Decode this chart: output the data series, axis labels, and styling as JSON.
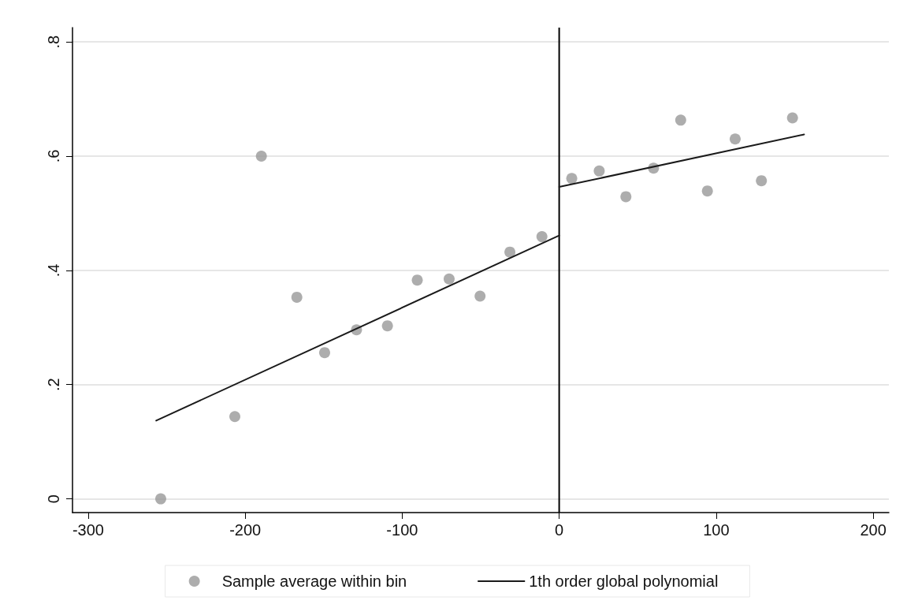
{
  "chart_data": {
    "type": "scatter",
    "series": [
      {
        "name": "Sample average within bin",
        "color": "#999999",
        "marker": "circle",
        "x": [
          -253.8,
          -206.6,
          -189.7,
          -167.1,
          -149.4,
          -129.1,
          -109.4,
          -90.4,
          -70.1,
          -50.4,
          -31.4,
          -11.0,
          8.0,
          25.5,
          42.5,
          60.1,
          77.4,
          94.4,
          112.1,
          128.8,
          148.6
        ],
        "values": [
          0.0,
          0.144,
          0.6,
          0.353,
          0.256,
          0.296,
          0.303,
          0.383,
          0.385,
          0.355,
          0.432,
          0.459,
          0.561,
          0.574,
          0.529,
          0.579,
          0.663,
          0.539,
          0.63,
          0.557,
          0.667
        ]
      },
      {
        "name": "1th order global polynomial",
        "type": "line",
        "color": "#1a1a1a",
        "marker": "none",
        "line_style": "solid",
        "x": [
          -256.7,
          0
        ],
        "values": [
          0.137,
          0.461
        ]
      },
      {
        "type": "line",
        "color": "#1a1a1a",
        "marker": "none",
        "line_style": "solid",
        "x": [
          0,
          156
        ],
        "values": [
          0.546,
          0.638
        ]
      }
    ],
    "xlim": [
      -310,
      210
    ],
    "xticks": [
      -300,
      -200,
      -100,
      0,
      100,
      200
    ],
    "ylim": [
      -0.024,
      0.825
    ],
    "yticks": [
      {
        "value": 0,
        "label": "0"
      },
      {
        "value": 0.2,
        "label": ".2"
      },
      {
        "value": 0.4,
        "label": ".4"
      },
      {
        "value": 0.6,
        "label": ".6"
      },
      {
        "value": 0.8,
        "label": ".8"
      }
    ],
    "ref_lines": [
      {
        "axis": "x",
        "value": 0,
        "color": "#000000",
        "line_style": "solid"
      }
    ],
    "grid": "y",
    "legend": "bottom"
  }
}
